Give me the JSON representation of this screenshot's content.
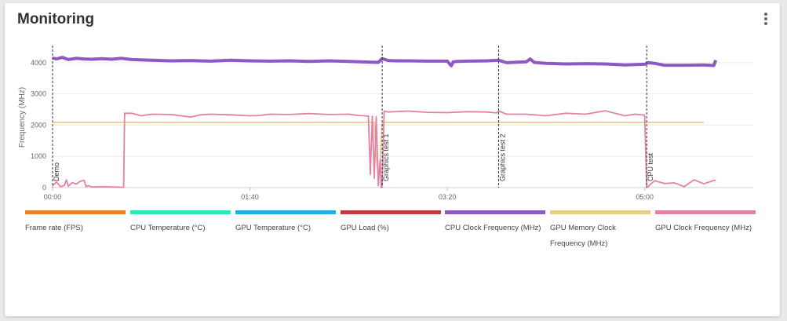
{
  "panel": {
    "title": "Monitoring"
  },
  "chart_data": {
    "type": "line",
    "ylabel": "Frequency (MHz)",
    "xlabel": "",
    "ylim": [
      0,
      4500
    ],
    "xlim": [
      0,
      355
    ],
    "y_ticks": [
      0,
      1000,
      2000,
      3000,
      4000
    ],
    "x_ticks": [
      {
        "t": 0,
        "label": "00:00"
      },
      {
        "t": 100,
        "label": "01:40"
      },
      {
        "t": 200,
        "label": "03:20"
      },
      {
        "t": 300,
        "label": "05:00"
      }
    ],
    "markers": [
      {
        "t": 0,
        "label": "Demo"
      },
      {
        "t": 167,
        "label": "Graphics test 1"
      },
      {
        "t": 226,
        "label": "Graphics test 2"
      },
      {
        "t": 301,
        "label": "CPU test"
      }
    ],
    "grid": true,
    "series": [
      {
        "name": "Frame rate (FPS)",
        "color": "#e8832a",
        "x": [],
        "values": []
      },
      {
        "name": "CPU Temperature (°C)",
        "color": "#2ee8b9",
        "x": [],
        "values": []
      },
      {
        "name": "GPU Temperature (°C)",
        "color": "#22b0e0",
        "x": [],
        "values": []
      },
      {
        "name": "GPU Load (%)",
        "color": "#c23b3b",
        "x": [],
        "values": []
      },
      {
        "name": "CPU Clock Frequency (MHz)",
        "color": "#8e59c4",
        "x": [
          0,
          2,
          5,
          8,
          12,
          16,
          20,
          25,
          30,
          35,
          40,
          50,
          60,
          70,
          80,
          90,
          100,
          110,
          120,
          130,
          140,
          150,
          160,
          165,
          167,
          170,
          175,
          180,
          190,
          200,
          202,
          203,
          205,
          210,
          220,
          226,
          230,
          240,
          242,
          244,
          250,
          260,
          270,
          280,
          290,
          300,
          302,
          305,
          310,
          320,
          330,
          335,
          336
        ],
        "values": [
          4150,
          4120,
          4170,
          4100,
          4140,
          4120,
          4110,
          4130,
          4110,
          4140,
          4100,
          4080,
          4060,
          4070,
          4050,
          4080,
          4060,
          4050,
          4060,
          4040,
          4060,
          4040,
          4020,
          4010,
          4130,
          4070,
          4060,
          4060,
          4050,
          4050,
          3900,
          4030,
          4040,
          4050,
          4060,
          4080,
          4000,
          4030,
          4120,
          4010,
          3980,
          3960,
          3970,
          3960,
          3930,
          3950,
          4000,
          3980,
          3920,
          3920,
          3930,
          3910,
          4080
        ]
      },
      {
        "name": "GPU Memory Clock Frequency (MHz)",
        "color": "#e8cd86",
        "x": [
          0,
          60,
          120,
          160,
          163,
          164,
          165,
          166,
          167,
          170,
          230,
          290,
          330
        ],
        "values": [
          2090,
          2090,
          2090,
          2090,
          2090,
          950,
          420,
          950,
          2090,
          2090,
          2090,
          2090,
          2090
        ]
      },
      {
        "name": "GPU Clock Frequency (MHz)",
        "color": "#e381a6",
        "x": [
          0,
          2,
          4,
          6,
          7,
          8,
          10,
          12,
          14,
          16,
          17,
          18,
          20,
          25,
          30,
          36,
          36.5,
          40,
          45,
          50,
          60,
          70,
          75,
          80,
          90,
          100,
          105,
          110,
          120,
          130,
          140,
          150,
          155,
          160,
          161,
          162,
          163,
          164,
          165,
          166,
          166.5,
          167,
          168,
          170,
          180,
          190,
          200,
          210,
          220,
          225,
          226,
          230,
          240,
          250,
          260,
          270,
          280,
          290,
          295,
          300,
          301,
          302,
          305,
          310,
          315,
          320,
          325,
          330,
          335,
          336
        ],
        "values": [
          50,
          180,
          30,
          70,
          250,
          40,
          160,
          110,
          200,
          230,
          30,
          60,
          20,
          30,
          20,
          10,
          2380,
          2380,
          2300,
          2350,
          2340,
          2260,
          2330,
          2350,
          2330,
          2300,
          2310,
          2350,
          2340,
          2370,
          2340,
          2350,
          2310,
          2290,
          420,
          2290,
          300,
          2270,
          60,
          900,
          0,
          80,
          2450,
          2420,
          2450,
          2410,
          2400,
          2430,
          2420,
          2390,
          2450,
          2350,
          2350,
          2300,
          2380,
          2350,
          2460,
          2300,
          2350,
          2320,
          0,
          50,
          220,
          130,
          150,
          30,
          250,
          120,
          230,
          230
        ]
      }
    ]
  }
}
